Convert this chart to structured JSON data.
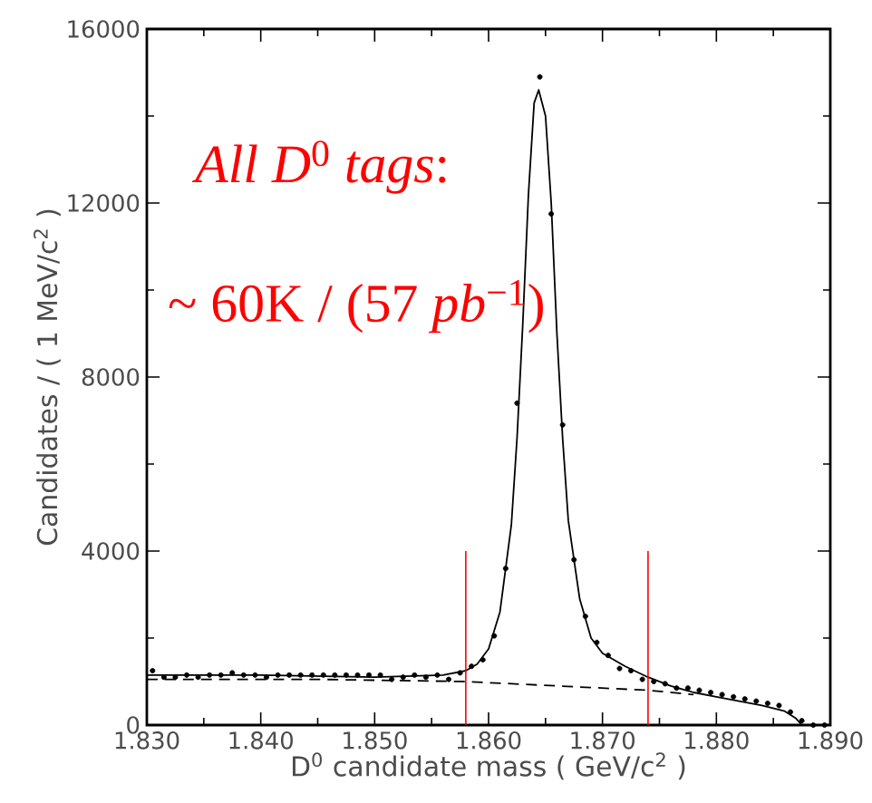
{
  "chart_data": {
    "type": "scatter",
    "xlabel": "D$^{0}$ candidate mass ( GeV/c$^{2}$ )",
    "ylabel": "Candidates / ( 1 MeV/c$^{2}$ )",
    "annotations": [
      "*All D*$^{0}$ *tags*:",
      "~ 60K / (57 *pb*$^{−1}$)"
    ],
    "xlim": [
      1.83,
      1.89
    ],
    "ylim": [
      0,
      16000
    ],
    "xticks": [
      {
        "value": 1.83,
        "label": "1.830"
      },
      {
        "value": 1.84,
        "label": "1.840"
      },
      {
        "value": 1.85,
        "label": "1.850"
      },
      {
        "value": 1.86,
        "label": "1.860"
      },
      {
        "value": 1.87,
        "label": "1.870"
      },
      {
        "value": 1.88,
        "label": "1.880"
      },
      {
        "value": 1.89,
        "label": "1.890"
      }
    ],
    "yticks": [
      0,
      4000,
      8000,
      12000,
      16000
    ],
    "grid": false,
    "series": [
      {
        "color": "#000000",
        "marker": "circle",
        "x": [
          1.8305,
          1.8315,
          1.8325,
          1.8335,
          1.8345,
          1.8355,
          1.8365,
          1.8375,
          1.8385,
          1.8395,
          1.8405,
          1.8415,
          1.8425,
          1.8435,
          1.8445,
          1.8455,
          1.8465,
          1.8475,
          1.8485,
          1.8495,
          1.8505,
          1.8515,
          1.8525,
          1.8535,
          1.8545,
          1.8555,
          1.8565,
          1.8575,
          1.8585,
          1.8595,
          1.8605,
          1.8615,
          1.8625,
          1.8635,
          1.8645,
          1.8655,
          1.8665,
          1.8675,
          1.8685,
          1.8695,
          1.8705,
          1.8715,
          1.8725,
          1.8735,
          1.8745,
          1.8755,
          1.8765,
          1.8775,
          1.8785,
          1.8795,
          1.8805,
          1.8815,
          1.8825,
          1.8835,
          1.8845,
          1.8855,
          1.8865,
          1.8875,
          1.8885,
          1.8895
        ],
        "values": [
          1250,
          1100,
          1100,
          1150,
          1100,
          1150,
          1150,
          1200,
          1150,
          1150,
          1100,
          1150,
          1150,
          1150,
          1150,
          1150,
          1150,
          1150,
          1150,
          1150,
          1150,
          1050,
          1100,
          1150,
          1100,
          1150,
          1050,
          1200,
          1350,
          1500,
          2050,
          3600,
          7400,
          null,
          14900,
          11750,
          6900,
          3800,
          2500,
          1900,
          1600,
          1300,
          1250,
          1050,
          1000,
          950,
          850,
          850,
          800,
          750,
          700,
          650,
          600,
          550,
          500,
          450,
          300,
          100,
          0,
          0
        ]
      },
      {
        "type": "line",
        "color": "#000000",
        "line_style": "solid",
        "x": [
          1.83,
          1.84,
          1.85,
          1.856,
          1.858,
          1.859,
          1.86,
          1.861,
          1.862,
          1.8625,
          1.863,
          1.8635,
          1.864,
          1.8644,
          1.865,
          1.8655,
          1.866,
          1.8665,
          1.867,
          1.868,
          1.869,
          1.87,
          1.872,
          1.874,
          1.876,
          1.878,
          1.88,
          1.882,
          1.884,
          1.886,
          1.887,
          1.8875,
          1.89
        ],
        "values": [
          1150,
          1150,
          1100,
          1150,
          1250,
          1400,
          1750,
          2600,
          4600,
          6600,
          9200,
          12200,
          14300,
          14600,
          14000,
          12000,
          9000,
          6600,
          4700,
          2900,
          2000,
          1650,
          1350,
          1100,
          900,
          750,
          650,
          550,
          450,
          320,
          150,
          0,
          0
        ]
      },
      {
        "type": "line",
        "color": "#000000",
        "line_style": "dashed",
        "x": [
          1.83,
          1.845,
          1.858,
          1.866,
          1.874,
          1.878
        ],
        "values": [
          1050,
          1050,
          1000,
          900,
          800,
          700
        ]
      }
    ],
    "ref_lines": [
      {
        "axis": "x",
        "value": 1.858,
        "color": "#ff0000"
      },
      {
        "axis": "x",
        "value": 1.874,
        "color": "#ff0000"
      }
    ]
  }
}
